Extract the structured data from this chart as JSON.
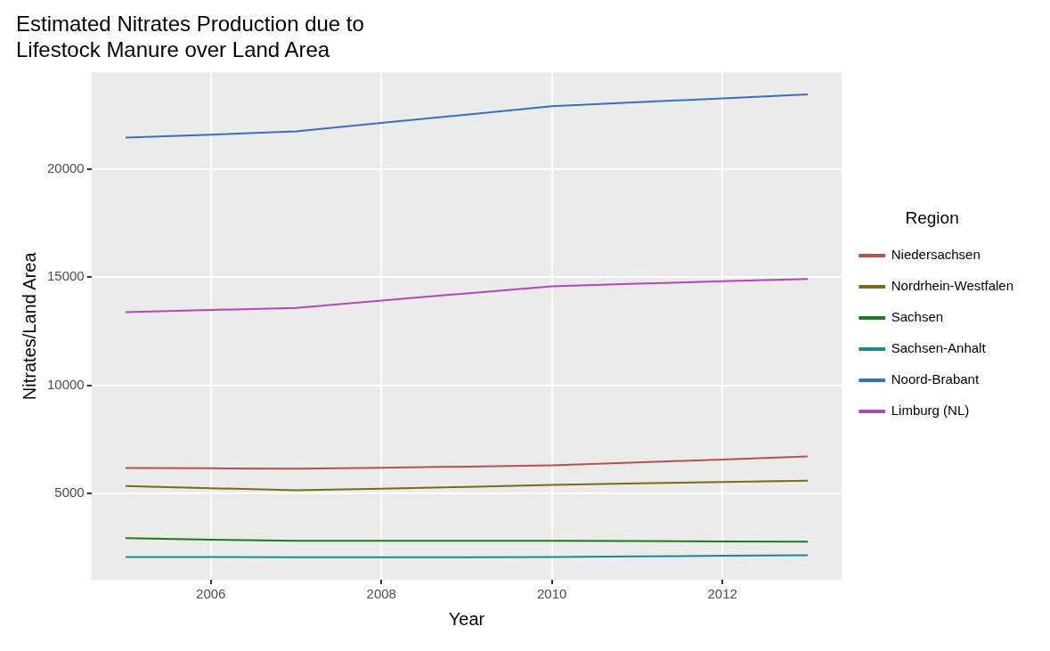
{
  "chart_data": {
    "type": "line",
    "title": [
      "Estimated Nitrates Production due to",
      "Lifestock Manure over Land Area"
    ],
    "xlabel": "Year",
    "ylabel": "Nitrates/Land Area",
    "legend_title": "Region",
    "x": [
      2005,
      2006,
      2007,
      2008,
      2009,
      2010,
      2011,
      2012,
      2013
    ],
    "series": [
      {
        "name": "Niedersachsen",
        "color": "#b5534f",
        "values": [
          6170,
          6150,
          6130,
          6180,
          6230,
          6290,
          6420,
          6560,
          6700
        ]
      },
      {
        "name": "Nordrhein-Westfalen",
        "color": "#7a6a1a",
        "values": [
          5330,
          5230,
          5130,
          5210,
          5290,
          5380,
          5450,
          5520,
          5580
        ]
      },
      {
        "name": "Sachsen",
        "color": "#1f7a1f",
        "values": [
          2920,
          2850,
          2790,
          2790,
          2790,
          2790,
          2780,
          2760,
          2750
        ]
      },
      {
        "name": "Sachsen-Anhalt",
        "color": "#1a8a8a",
        "values": [
          2040,
          2040,
          2030,
          2030,
          2030,
          2040,
          2070,
          2100,
          2120
        ]
      },
      {
        "name": "Noord-Brabant",
        "color": "#3a6fc0",
        "values": [
          21460,
          21600,
          21750,
          22140,
          22530,
          22920,
          23100,
          23280,
          23460
        ]
      },
      {
        "name": "Limburg (NL)",
        "color": "#b04ab8",
        "values": [
          13380,
          13480,
          13580,
          13920,
          14250,
          14580,
          14700,
          14810,
          14920
        ]
      }
    ],
    "xlim": [
      2004.6,
      2013.4
    ],
    "xticks": [
      2006,
      2008,
      2010,
      2012
    ],
    "ylim": [
      990,
      24470
    ],
    "yticks": [
      5000,
      10000,
      15000,
      20000
    ],
    "grid": true,
    "legend": "right",
    "marker": "none",
    "line_style": "solid"
  }
}
